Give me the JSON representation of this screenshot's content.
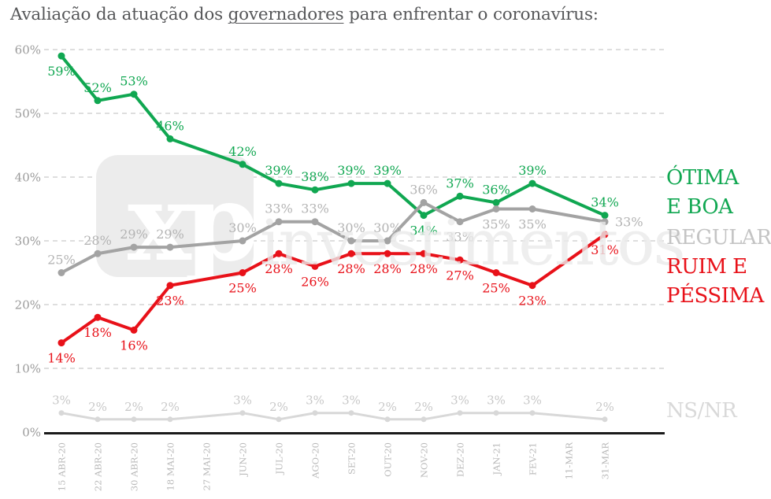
{
  "title": {
    "pre": "Avaliação da atuação dos ",
    "underlined": "governadores",
    "post": " para enfrentar o coronavírus:"
  },
  "watermark": {
    "logo_text": "xp",
    "brand_text": "investimentos"
  },
  "chart_data": {
    "type": "line",
    "title": "Avaliação da atuação dos governadores para enfrentar o coronavírus:",
    "xlabel": "",
    "ylabel": "",
    "ylim": [
      0,
      60
    ],
    "grid": "horizontal-dashed",
    "legend_position": "right",
    "y_ticks": [
      "60%",
      "50%",
      "40%",
      "30%",
      "20%",
      "10%",
      "0%"
    ],
    "x_labels": [
      "15 ABR-20",
      "22 ABR-20",
      "30 ABR-20",
      "18 MAI-20",
      "27 MAI-20",
      "JUN-20",
      "JUL-20",
      "AGO-20",
      "SET-20",
      "OUT-20",
      "NOV-20",
      "DEZ-20",
      "JAN-21",
      "FEV-21",
      "11-MAR",
      "31-MAR"
    ],
    "data_slots": [
      0,
      1,
      2,
      3,
      5,
      6,
      7,
      8,
      9,
      10,
      11,
      12,
      13,
      15
    ],
    "colors": {
      "grid": "#dedede",
      "axis": "#1a1a1a",
      "y_tick_labels": "#9b9b9b",
      "x_tick_labels": "#b9b9b9",
      "watermark_box": "#ececec",
      "watermark_logo": "#ffffff",
      "watermark_brand": "#eaeaea",
      "title": "#565759"
    },
    "series": [
      {
        "name": "ÓTIMA E BOA",
        "legend_lines": [
          "ÓTIMA",
          "E BOA"
        ],
        "color": "#10a751",
        "label_color": "#10a751",
        "legend_color": "#10a751",
        "values": [
          59,
          52,
          53,
          46,
          42,
          39,
          38,
          39,
          39,
          34,
          37,
          36,
          39,
          34
        ],
        "label_side": "above",
        "label_overrides": {
          "0": "below",
          "9": "below"
        }
      },
      {
        "name": "REGULAR",
        "legend_lines": [
          "REGULAR"
        ],
        "color": "#a3a3a3",
        "label_color": "#b3b3b3",
        "legend_color": "#c4c4c4",
        "values": [
          25,
          28,
          29,
          29,
          30,
          33,
          33,
          30,
          30,
          36,
          33,
          35,
          35,
          33
        ],
        "label_side": "above",
        "label_overrides": {
          "10": "below",
          "11": "below",
          "12": "below",
          "13": "right"
        }
      },
      {
        "name": "RUIM E PÉSSIMA",
        "legend_lines": [
          "RUIM E",
          "PÉSSIMA"
        ],
        "color": "#e81119",
        "label_color": "#e81119",
        "legend_color": "#e81119",
        "values": [
          14,
          18,
          16,
          23,
          25,
          28,
          26,
          28,
          28,
          28,
          27,
          25,
          23,
          31
        ],
        "label_side": "below",
        "label_overrides": {}
      },
      {
        "name": "NS/NR",
        "legend_lines": [
          "NS/NR"
        ],
        "color": "#d8d8d8",
        "label_color": "#c8c8c8",
        "legend_color": "#d9d9d9",
        "values": [
          3,
          2,
          2,
          2,
          3,
          2,
          3,
          3,
          2,
          2,
          3,
          3,
          3,
          2
        ],
        "label_side": "above",
        "label_overrides": {}
      }
    ]
  }
}
